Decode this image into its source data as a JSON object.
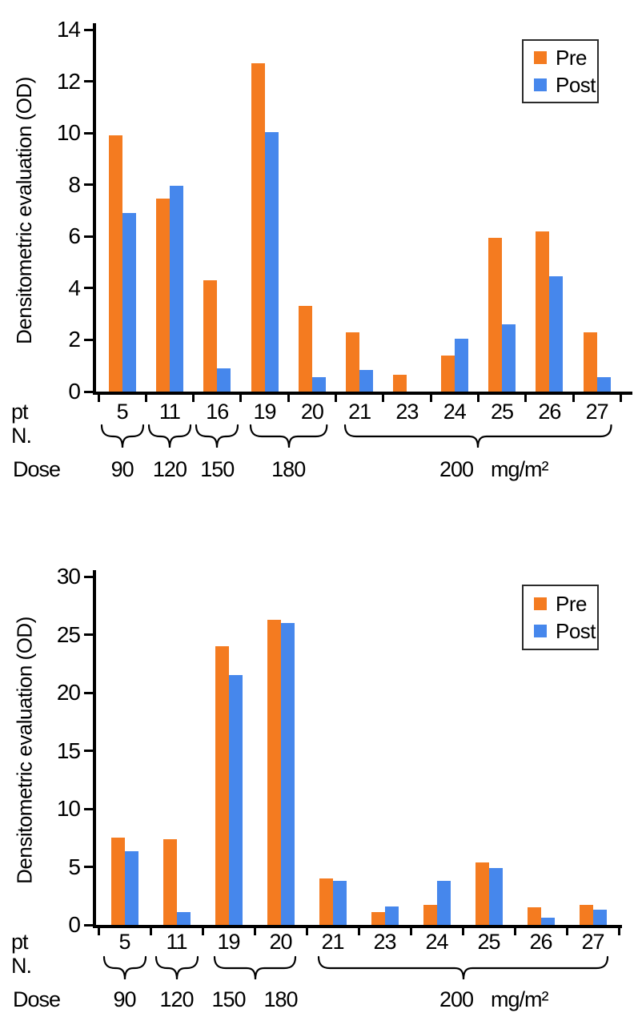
{
  "page": {
    "background": "#ffffff"
  },
  "colors": {
    "pre": "#F47B20",
    "post": "#4687EC",
    "axis": "#000000"
  },
  "chart_data": [
    {
      "type": "bar",
      "title": "",
      "ylabel": "Densitometric evaluation (OD)",
      "xlabel": "",
      "ylim": [
        0,
        14
      ],
      "ytick_step": 2,
      "grid": false,
      "legend_position": "top-right",
      "row_labels": {
        "patients": "pt N.",
        "dose": "Dose"
      },
      "dose_unit": "mg/m²",
      "categories": [
        "5",
        "11",
        "16",
        "19",
        "20",
        "21",
        "23",
        "24",
        "25",
        "26",
        "27"
      ],
      "series": [
        {
          "name": "Pre",
          "color": "#F47B20",
          "values": [
            9.9,
            7.45,
            4.3,
            12.7,
            3.3,
            2.3,
            0.65,
            1.4,
            5.95,
            6.2,
            2.3
          ]
        },
        {
          "name": "Post",
          "color": "#4687EC",
          "values": [
            6.9,
            7.95,
            0.9,
            10.05,
            0.55,
            0.85,
            0,
            2.05,
            2.6,
            4.45,
            0.55
          ]
        }
      ],
      "dose_groups": [
        {
          "dose": "90",
          "from": "5",
          "to": "5",
          "wide": false
        },
        {
          "dose": "120",
          "from": "11",
          "to": "11",
          "wide": false
        },
        {
          "dose": "150",
          "from": "16",
          "to": "16",
          "wide": false
        },
        {
          "dose": "180",
          "from": "19",
          "to": "20",
          "wide": false
        },
        {
          "dose": "200",
          "from": "21",
          "to": "27",
          "wide": true
        }
      ],
      "legend": [
        {
          "label": "Pre",
          "color": "#F47B20"
        },
        {
          "label": "Post",
          "color": "#4687EC"
        }
      ]
    },
    {
      "type": "bar",
      "title": "",
      "ylabel": "Densitometric evaluation (OD)",
      "xlabel": "",
      "ylim": [
        0,
        30
      ],
      "ytick_step": 5,
      "grid": false,
      "legend_position": "top-right",
      "row_labels": {
        "patients": "pt N.",
        "dose": "Dose"
      },
      "dose_unit": "mg/m²",
      "categories": [
        "5",
        "11",
        "19",
        "20",
        "21",
        "23",
        "24",
        "25",
        "26",
        "27"
      ],
      "series": [
        {
          "name": "Pre",
          "color": "#F47B20",
          "values": [
            7.5,
            7.35,
            24.0,
            26.3,
            4.0,
            1.1,
            1.7,
            5.4,
            1.5,
            1.75
          ]
        },
        {
          "name": "Post",
          "color": "#4687EC",
          "values": [
            6.35,
            1.1,
            21.5,
            26.0,
            3.8,
            1.6,
            3.8,
            4.9,
            0.6,
            1.3
          ]
        }
      ],
      "dose_groups": [
        {
          "dose": "90",
          "from": "5",
          "to": "5",
          "wide": false
        },
        {
          "dose": "120",
          "from": "11",
          "to": "11",
          "wide": false
        },
        {
          "dose": "150",
          "from": "19",
          "to": "19",
          "brace": false
        },
        {
          "dose": "180",
          "from": "20",
          "to": "20",
          "brace": false
        },
        {
          "dose": "150-180-brace",
          "from": "19",
          "to": "20",
          "label": "",
          "wide": false
        },
        {
          "dose": "200",
          "from": "21",
          "to": "27",
          "wide": true
        }
      ],
      "legend": [
        {
          "label": "Pre",
          "color": "#F47B20"
        },
        {
          "label": "Post",
          "color": "#4687EC"
        }
      ]
    }
  ]
}
